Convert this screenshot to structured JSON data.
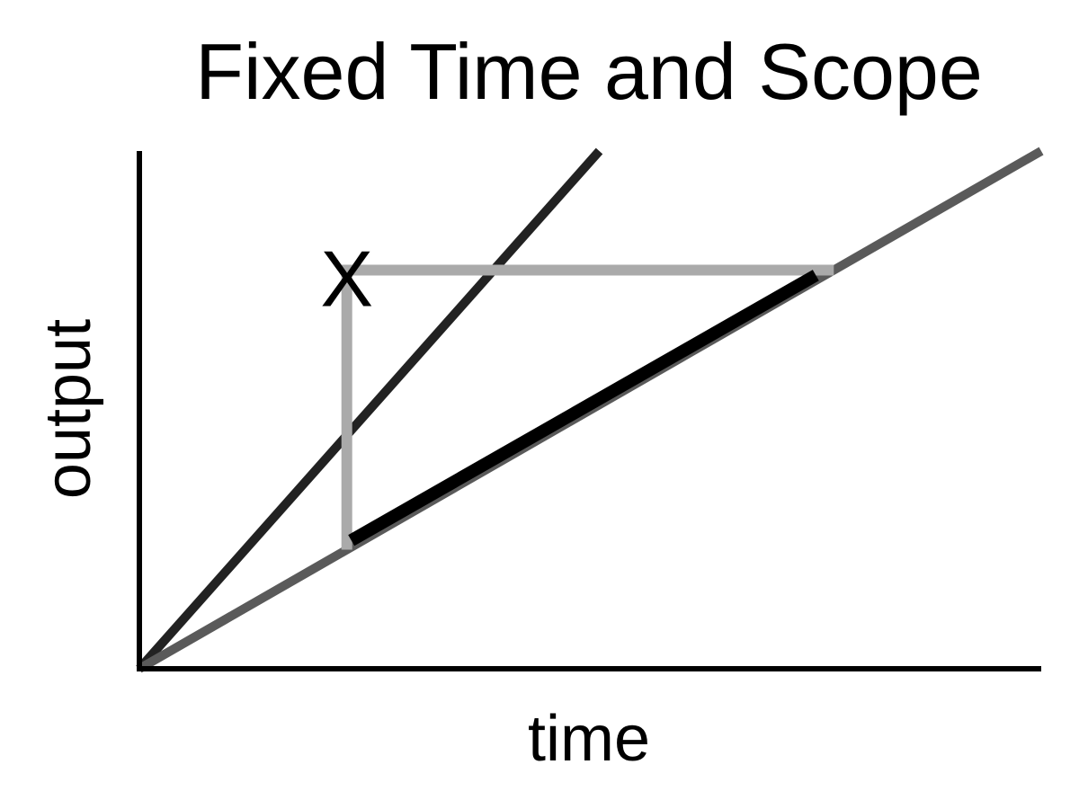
{
  "chart_data": {
    "type": "line",
    "title": "Fixed Time and Scope",
    "xlabel": "time",
    "ylabel": "output",
    "xlim": [
      0,
      1
    ],
    "ylim": [
      0,
      1
    ],
    "grid": false,
    "legend": "none",
    "series": [
      {
        "color": "#222222",
        "x": [
          0,
          0.51
        ],
        "y": [
          0,
          1
        ]
      },
      {
        "color": "#5a5a5a",
        "x": [
          0,
          1
        ],
        "y": [
          0,
          1
        ]
      },
      {
        "color": "#aaaaaa",
        "x": [
          0.23,
          0.23,
          0.77
        ],
        "y": [
          0.23,
          0.77,
          0.77
        ]
      },
      {
        "color": "#000000",
        "x": [
          0.235,
          0.75
        ],
        "y": [
          0.248,
          0.76
        ]
      }
    ],
    "annotations": [
      {
        "text": "X",
        "x": 0.23,
        "y": 0.77
      }
    ]
  }
}
